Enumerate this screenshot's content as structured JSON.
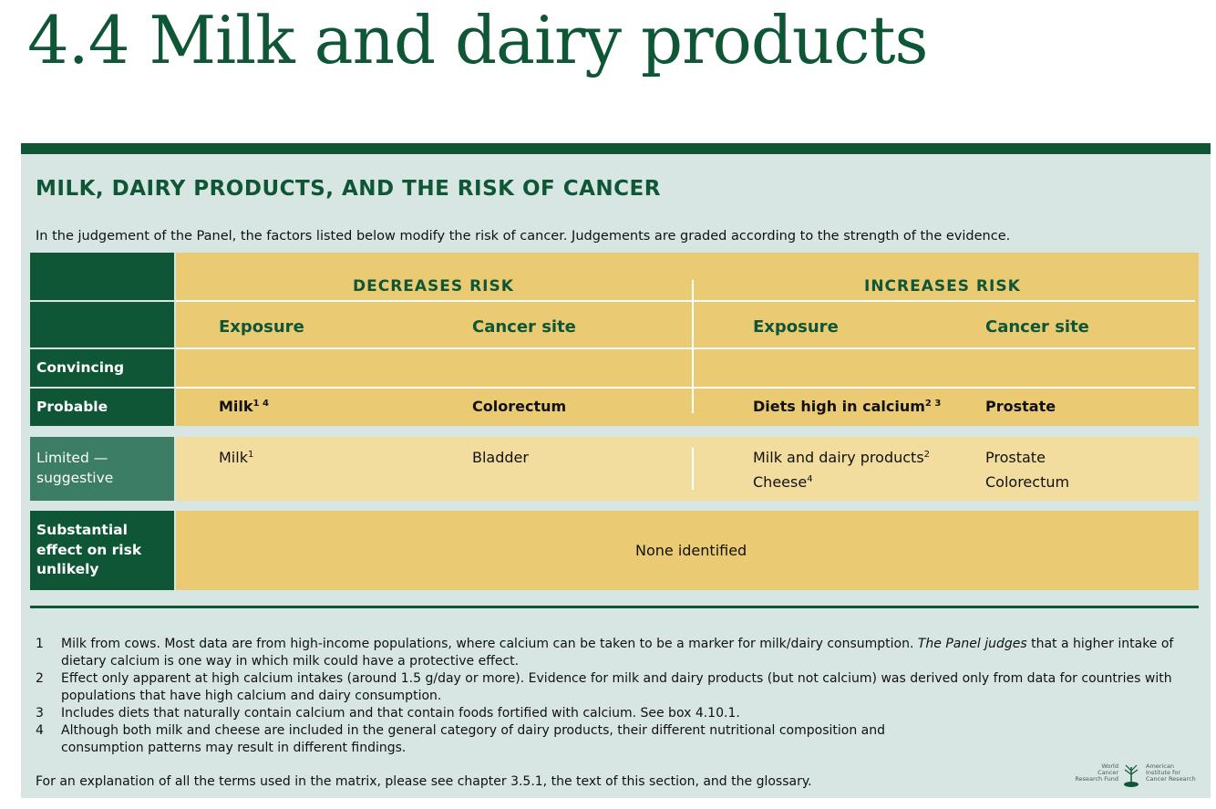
{
  "page_title": "4.4  Milk and dairy products",
  "box": {
    "title": "MILK, DAIRY PRODUCTS, AND THE RISK OF CANCER",
    "intro": "In the judgement of the Panel, the factors listed below modify the risk of cancer. Judgements are graded according to the strength of the evidence."
  },
  "matrix": {
    "decreases_header": "DECREASES RISK",
    "increases_header": "INCREASES RISK",
    "exposure_label": "Exposure",
    "cancer_site_label": "Cancer site",
    "rows": {
      "convincing": {
        "label": "Convincing"
      },
      "probable": {
        "label": "Probable",
        "dec_exposure": "Milk",
        "dec_exposure_sup": "1 4",
        "dec_site": "Colorectum",
        "inc_exposure": "Diets high in calcium",
        "inc_exposure_sup": "2 3",
        "inc_site": "Prostate"
      },
      "limited": {
        "label_line1": "Limited —",
        "label_line2": "suggestive",
        "dec_exposure": "Milk",
        "dec_exposure_sup": "1",
        "dec_site": "Bladder",
        "inc_exposure_1": "Milk and dairy products",
        "inc_exposure_1_sup": "2",
        "inc_exposure_2": "Cheese",
        "inc_exposure_2_sup": "4",
        "inc_site_1": "Prostate",
        "inc_site_2": "Colorectum"
      },
      "substantial": {
        "label_line1": "Substantial",
        "label_line2": "effect on risk",
        "label_line3": "unlikely",
        "value": "None identified"
      }
    }
  },
  "notes": [
    {
      "num": "1",
      "text_a": "Milk from cows. Most data are from high-income populations, where calcium can be taken to be a marker for milk/dairy consumption. ",
      "text_em": "The Panel judges",
      "text_b": " that a higher intake of dietary calcium is one way in which milk could have a protective effect."
    },
    {
      "num": "2",
      "text": "Effect only apparent at high calcium intakes (around 1.5 g/day or more). Evidence for milk and dairy products (but not calcium) was derived only from data for countries with populations that have high calcium and dairy consumption."
    },
    {
      "num": "3",
      "text": "Includes diets that naturally contain calcium and that contain foods fortified with calcium. See box 4.10.1."
    },
    {
      "num": "4",
      "text": "Although both milk and cheese are included in the general category of dairy products, their different nutritional composition and consumption patterns may result in different findings."
    }
  ],
  "footer": "For an explanation of all the terms used in the matrix, please see chapter 3.5.1, the text of this section, and the glossary.",
  "logos": {
    "left_line1": "World",
    "left_line2": "Cancer",
    "left_line3": "Research Fund",
    "right_line1": "American",
    "right_line2": "Institute for",
    "right_line3": "Cancer Research"
  },
  "colors": {
    "brand_green": "#0e5636",
    "label_light_green": "#3c7d66",
    "gold": "#ebca74",
    "pale_gold": "#f2dd9f",
    "panel_bg": "#d7e6e2"
  }
}
